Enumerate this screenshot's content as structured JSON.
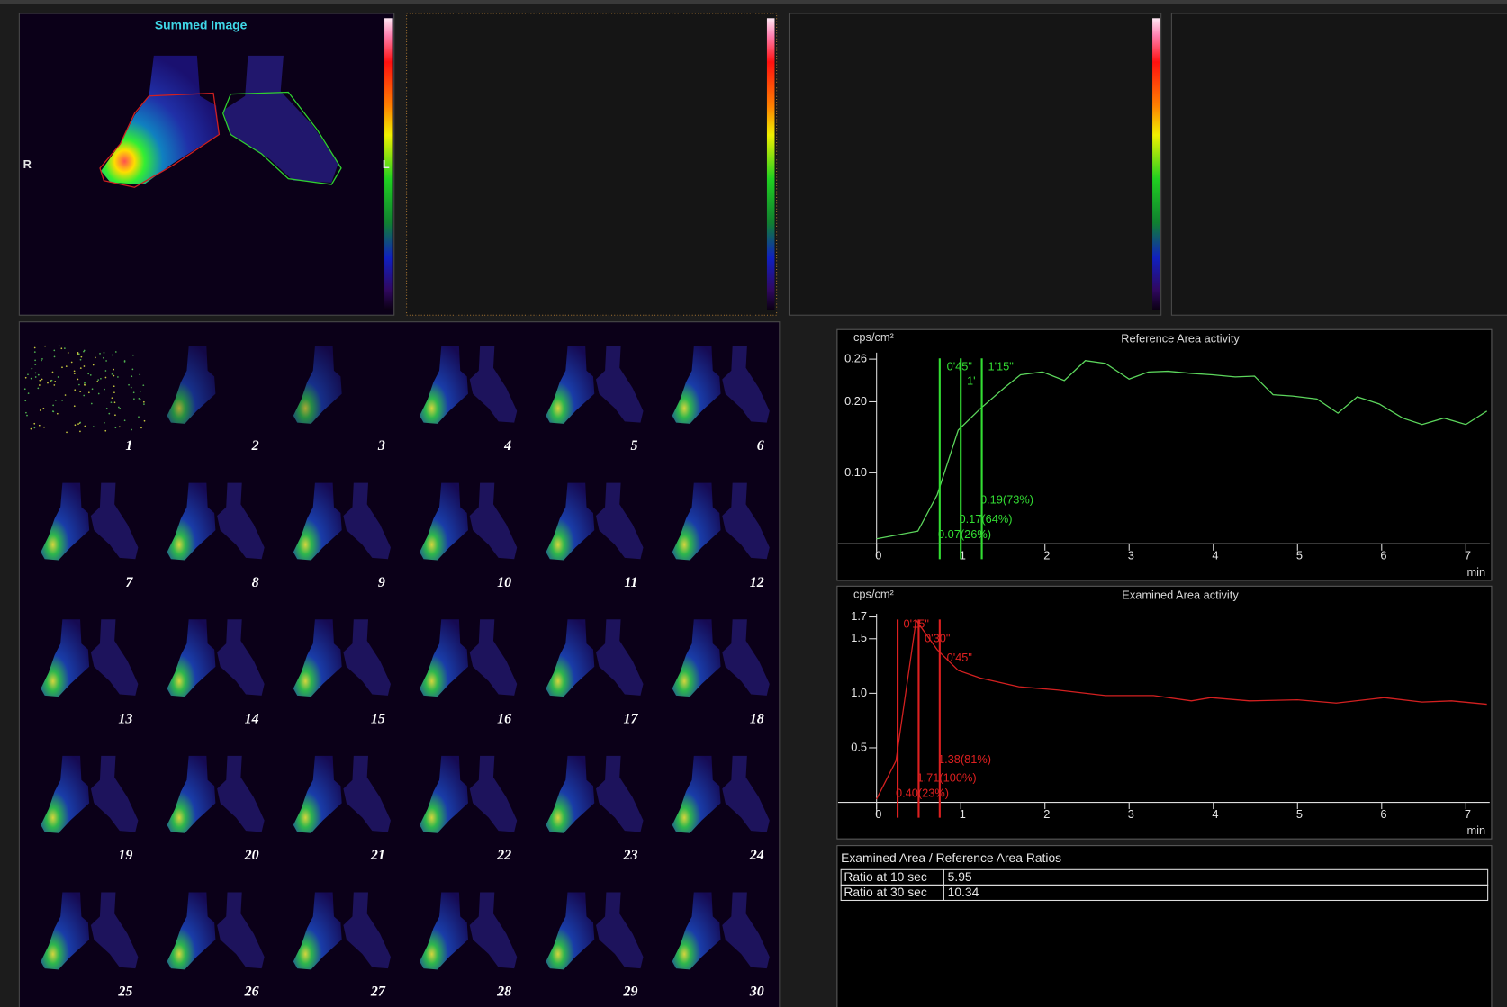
{
  "window": {
    "summed_title": "Summed Image",
    "side_right": "R",
    "side_left": "L"
  },
  "frames": [
    "1",
    "2",
    "3",
    "4",
    "5",
    "6",
    "7",
    "8",
    "9",
    "10",
    "11",
    "12",
    "13",
    "14",
    "15",
    "16",
    "17",
    "18",
    "19",
    "20",
    "21",
    "22",
    "23",
    "24",
    "25",
    "26",
    "27",
    "28",
    "29",
    "30"
  ],
  "chart_data": [
    {
      "type": "line",
      "title": "Reference Area activity",
      "y_label": "cps/cm²",
      "x_label": "min",
      "color": "#5cd65c",
      "xlim": [
        -0.457,
        7.283
      ],
      "ylim": [
        0,
        0.28
      ],
      "xticks": [
        0,
        1,
        2,
        3,
        4,
        5,
        6,
        7
      ],
      "yticks": [
        {
          "value": 0.1,
          "label": "0.10"
        },
        {
          "value": 0.2,
          "label": "0.20"
        },
        {
          "value": 0.26,
          "label": "0.26"
        }
      ],
      "x": [
        0,
        0.49,
        0.72,
        0.97,
        1.23,
        1.52,
        1.71,
        1.97,
        2.23,
        2.48,
        2.72,
        3.0,
        3.23,
        3.46,
        3.74,
        3.99,
        4.26,
        4.49,
        4.71,
        4.94,
        5.23,
        5.48,
        5.71,
        5.97,
        6.25,
        6.48,
        6.74,
        7.0,
        7.25
      ],
      "values": [
        0.007,
        0.018,
        0.069,
        0.16,
        0.19,
        0.22,
        0.238,
        0.242,
        0.23,
        0.258,
        0.254,
        0.232,
        0.242,
        0.243,
        0.24,
        0.238,
        0.235,
        0.236,
        0.21,
        0.208,
        0.204,
        0.184,
        0.207,
        0.197,
        0.177,
        0.168,
        0.177,
        0.168,
        0.187
      ],
      "marker_color": "#33dd33",
      "markers": [
        {
          "x": 0.75,
          "label": "0'45\"",
          "value_label": "0.07(26%)"
        },
        {
          "x": 1,
          "label": "1'",
          "value_label": "0.17(64%)"
        },
        {
          "x": 1.25,
          "label": "1'15\"",
          "value_label": "0.19(73%)"
        }
      ]
    },
    {
      "type": "line",
      "title": "Examined Area activity",
      "y_label": "cps/cm²",
      "x_label": "min",
      "color": "#d42020",
      "xlim": [
        -0.457,
        7.283
      ],
      "ylim": [
        0,
        1.8
      ],
      "xticks": [
        0,
        1,
        2,
        3,
        4,
        5,
        6,
        7
      ],
      "yticks": [
        0.5,
        {
          "value": 1,
          "label": "1.0"
        },
        1.5,
        1.7
      ],
      "x": [
        0,
        0.23,
        0.47,
        0.72,
        0.97,
        1.23,
        1.69,
        2.15,
        2.72,
        3.29,
        3.74,
        3.97,
        4.43,
        5.0,
        5.46,
        6.03,
        6.48,
        6.83,
        7.25
      ],
      "values": [
        0.03,
        0.38,
        1.67,
        1.4,
        1.21,
        1.14,
        1.06,
        1.03,
        0.98,
        0.98,
        0.93,
        0.96,
        0.93,
        0.94,
        0.91,
        0.96,
        0.92,
        0.93,
        0.9
      ],
      "marker_color": "#dd2020",
      "markers": [
        {
          "x": 0.25,
          "label": "0'15\"",
          "value_label": "0.40(23%)"
        },
        {
          "x": 0.5,
          "label": "0'30\"",
          "value_label": "1.71(100%)"
        },
        {
          "x": 0.75,
          "label": "0'45\"",
          "value_label": "1.38(81%)"
        }
      ]
    }
  ],
  "ratios": {
    "title": "Examined Area / Reference Area Ratios",
    "rows": [
      [
        "Ratio at 10 sec",
        "5.95"
      ],
      [
        "Ratio at 30 sec",
        "10.34"
      ]
    ]
  }
}
